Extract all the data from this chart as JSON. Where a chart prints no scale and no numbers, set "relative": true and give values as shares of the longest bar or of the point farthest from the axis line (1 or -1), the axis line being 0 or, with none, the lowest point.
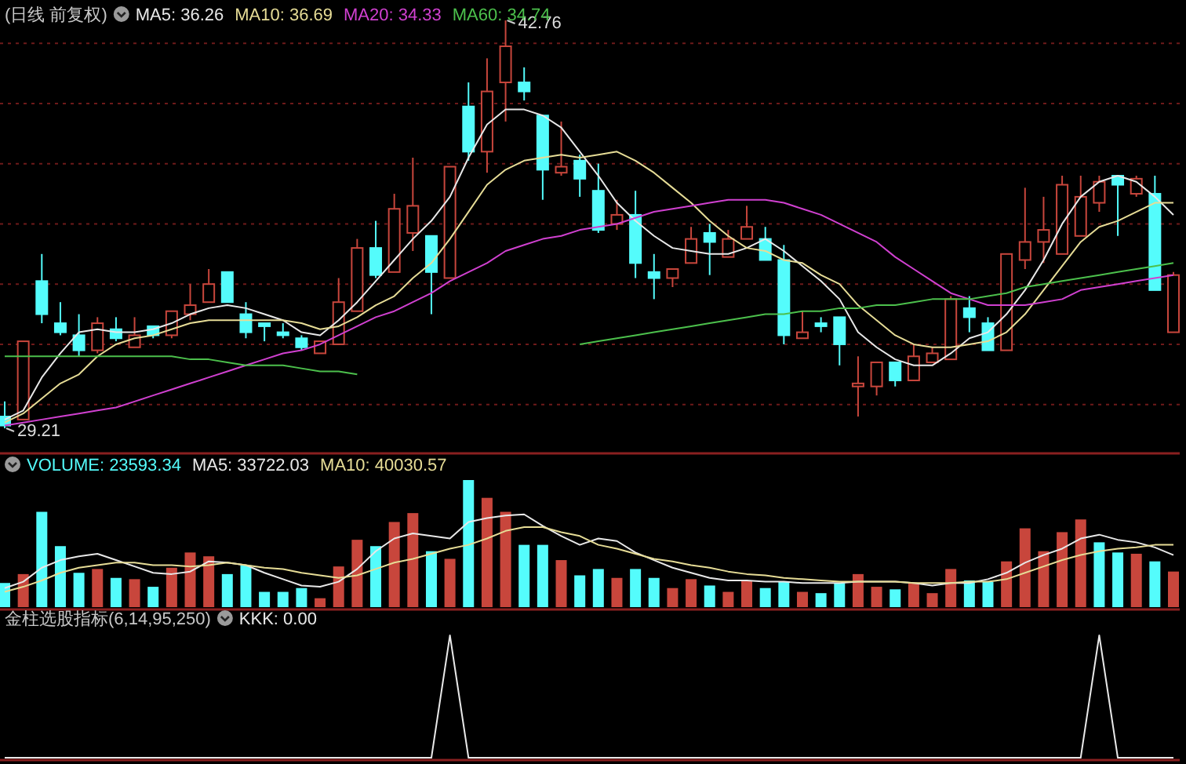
{
  "chart_data": [
    {
      "type": "candlestick",
      "title": "(日线 前复权)",
      "legend": "top left",
      "grid": "y",
      "yticks": [
        {
          "value": 30,
          "label": null
        },
        {
          "value": 32,
          "label": null
        },
        {
          "value": 34,
          "label": null
        },
        {
          "value": 36,
          "label": null
        },
        {
          "value": 38,
          "label": null
        },
        {
          "value": 40,
          "label": null
        },
        {
          "value": 42,
          "label": null
        }
      ],
      "categories": [
        null,
        null,
        null,
        null,
        null,
        null,
        null,
        null,
        null,
        null,
        null,
        null,
        null,
        null,
        null,
        null,
        null,
        null,
        null,
        null,
        null,
        null,
        null,
        null,
        null,
        null,
        null,
        null,
        null,
        null,
        null,
        null,
        null,
        null,
        null,
        null,
        null,
        null,
        null,
        null,
        null,
        null,
        null,
        null,
        null,
        null,
        null,
        null,
        null,
        null,
        null,
        null,
        null,
        null,
        null,
        null,
        null,
        null,
        null,
        null,
        null,
        null,
        null,
        null
      ],
      "ohlc": [
        [
          29.6,
          30.1,
          29.21,
          29.3
        ],
        [
          29.5,
          32.1,
          29.5,
          32.1
        ],
        [
          34.1,
          35.0,
          32.7,
          33.0
        ],
        [
          32.7,
          33.4,
          32.3,
          32.4
        ],
        [
          32.3,
          33.0,
          31.6,
          31.8
        ],
        [
          31.8,
          32.9,
          31.7,
          32.7
        ],
        [
          32.5,
          32.9,
          32.1,
          32.2
        ],
        [
          31.9,
          32.9,
          31.9,
          32.3
        ],
        [
          32.6,
          32.6,
          32.2,
          32.3
        ],
        [
          32.3,
          33.1,
          32.2,
          33.1
        ],
        [
          33.0,
          34.0,
          32.8,
          33.3
        ],
        [
          33.4,
          34.5,
          33.4,
          34.0
        ],
        [
          34.4,
          34.4,
          33.4,
          33.4
        ],
        [
          33.0,
          33.4,
          32.2,
          32.4
        ],
        [
          32.7,
          32.7,
          32.1,
          32.6
        ],
        [
          32.4,
          32.7,
          32.2,
          32.3
        ],
        [
          32.2,
          32.3,
          31.8,
          31.9
        ],
        [
          31.7,
          32.1,
          31.7,
          32.1
        ],
        [
          32.0,
          34.2,
          32.0,
          33.4
        ],
        [
          33.1,
          35.5,
          33.1,
          35.2
        ],
        [
          35.2,
          36.1,
          34.2,
          34.3
        ],
        [
          34.4,
          37.0,
          34.4,
          36.5
        ],
        [
          35.7,
          38.2,
          35.1,
          36.6
        ],
        [
          35.6,
          35.6,
          33.0,
          34.4
        ],
        [
          34.2,
          37.9,
          34.2,
          37.9
        ],
        [
          39.9,
          40.7,
          38.1,
          38.4
        ],
        [
          38.4,
          41.5,
          37.7,
          40.4
        ],
        [
          40.7,
          42.76,
          39.4,
          41.9
        ],
        [
          40.7,
          41.2,
          40.1,
          40.4
        ],
        [
          39.6,
          39.6,
          36.8,
          37.8
        ],
        [
          37.7,
          39.4,
          37.6,
          37.9
        ],
        [
          38.1,
          38.3,
          36.9,
          37.5
        ],
        [
          37.1,
          38.0,
          35.7,
          35.8
        ],
        [
          36.0,
          36.8,
          35.8,
          36.3
        ],
        [
          36.3,
          37.1,
          34.2,
          34.7
        ],
        [
          34.4,
          35.0,
          33.5,
          34.2
        ],
        [
          34.2,
          34.5,
          33.9,
          34.5
        ],
        [
          34.7,
          35.9,
          34.7,
          35.5
        ],
        [
          35.7,
          36.0,
          34.3,
          35.4
        ],
        [
          34.9,
          35.8,
          34.9,
          35.5
        ],
        [
          35.5,
          36.6,
          35.5,
          35.9
        ],
        [
          35.5,
          35.9,
          34.8,
          34.8
        ],
        [
          34.8,
          35.3,
          32.0,
          32.3
        ],
        [
          32.2,
          33.1,
          32.2,
          32.4
        ],
        [
          32.7,
          32.9,
          32.4,
          32.6
        ],
        [
          32.9,
          32.9,
          31.3,
          32.0
        ],
        [
          30.6,
          31.6,
          29.6,
          30.7
        ],
        [
          30.6,
          31.4,
          30.3,
          31.4
        ],
        [
          31.4,
          31.4,
          30.6,
          30.8
        ],
        [
          30.8,
          32.0,
          30.8,
          31.6
        ],
        [
          31.4,
          31.9,
          31.4,
          31.7
        ],
        [
          31.5,
          33.6,
          31.5,
          33.5
        ],
        [
          33.2,
          33.6,
          32.4,
          32.9
        ],
        [
          32.7,
          32.9,
          31.8,
          31.8
        ],
        [
          31.8,
          35.0,
          31.8,
          35.0
        ],
        [
          34.8,
          37.2,
          34.5,
          35.4
        ],
        [
          35.4,
          36.9,
          34.7,
          35.8
        ],
        [
          35.0,
          37.6,
          35.0,
          37.3
        ],
        [
          35.6,
          37.6,
          35.6,
          36.9
        ],
        [
          36.7,
          37.6,
          36.4,
          37.4
        ],
        [
          37.6,
          37.6,
          35.6,
          37.3
        ],
        [
          37.0,
          37.6,
          36.9,
          37.5
        ],
        [
          37.0,
          37.6,
          33.8,
          33.8
        ],
        [
          32.4,
          34.4,
          32.4,
          34.3
        ]
      ],
      "series": [
        {
          "type": "line",
          "name": "MA5: 36.26",
          "color": "#e8e8e8",
          "values": [
            29.5,
            29.8,
            30.9,
            31.7,
            32.4,
            32.5,
            32.4,
            32.4,
            32.5,
            32.7,
            33.0,
            33.2,
            33.3,
            33.2,
            33.0,
            32.8,
            32.4,
            32.3,
            32.8,
            33.4,
            34.1,
            34.8,
            35.5,
            36.1,
            36.9,
            38.2,
            39.3,
            39.8,
            39.8,
            39.6,
            39.2,
            38.4,
            37.6,
            36.7,
            36.1,
            35.6,
            35.2,
            35.1,
            35.0,
            35.0,
            35.2,
            35.5,
            35.1,
            34.6,
            34.1,
            33.5,
            32.4,
            31.9,
            31.5,
            31.3,
            31.3,
            31.7,
            32.2,
            32.4,
            33.0,
            33.8,
            34.8,
            36.0,
            36.9,
            37.4,
            37.6,
            37.4,
            36.9,
            36.3
          ]
        },
        {
          "type": "line",
          "name": "MA10: 36.69",
          "color": "#e6dc96",
          "values": [
            29.4,
            29.7,
            30.2,
            30.7,
            31.0,
            31.6,
            32.0,
            32.2,
            32.3,
            32.5,
            32.7,
            32.8,
            32.8,
            32.8,
            32.8,
            32.8,
            32.7,
            32.5,
            32.6,
            32.9,
            33.3,
            33.6,
            34.2,
            34.7,
            35.5,
            36.4,
            37.3,
            37.8,
            38.1,
            38.2,
            38.3,
            38.2,
            38.3,
            38.4,
            38.1,
            37.7,
            37.2,
            36.7,
            36.1,
            35.6,
            35.2,
            35.1,
            34.8,
            34.7,
            34.3,
            34.0,
            33.3,
            32.8,
            32.3,
            32.0,
            31.9,
            31.9,
            32.0,
            32.1,
            32.4,
            33.0,
            33.8,
            34.6,
            35.4,
            35.9,
            36.1,
            36.4,
            36.7,
            36.7
          ]
        },
        {
          "type": "line",
          "name": "MA20: 34.33",
          "color": "#d040d0",
          "values": [
            29.3,
            29.4,
            29.5,
            29.6,
            29.7,
            29.8,
            29.9,
            30.1,
            30.3,
            30.5,
            30.7,
            30.9,
            31.1,
            31.3,
            31.5,
            31.7,
            31.8,
            32.0,
            32.3,
            32.6,
            32.9,
            33.1,
            33.4,
            33.7,
            34.1,
            34.4,
            34.7,
            35.1,
            35.3,
            35.5,
            35.6,
            35.8,
            35.9,
            36.0,
            36.2,
            36.4,
            36.5,
            36.6,
            36.7,
            36.8,
            36.8,
            36.8,
            36.7,
            36.5,
            36.3,
            36.0,
            35.7,
            35.4,
            34.9,
            34.5,
            34.1,
            33.7,
            33.5,
            33.3,
            33.3,
            33.3,
            33.4,
            33.5,
            33.8,
            33.9,
            34.0,
            34.1,
            34.2,
            34.3
          ]
        },
        {
          "type": "line",
          "name": "MA60: 34.74",
          "color": "#4cc04c",
          "values": [
            31.6,
            31.6,
            31.6,
            31.6,
            31.6,
            31.6,
            31.6,
            31.6,
            31.6,
            31.6,
            31.5,
            31.5,
            31.4,
            31.3,
            31.3,
            31.3,
            31.2,
            31.1,
            31.1,
            31.0,
            null,
            null,
            null,
            null,
            null,
            null,
            null,
            null,
            null,
            null,
            null,
            32.0,
            32.1,
            32.2,
            32.3,
            32.4,
            32.5,
            32.6,
            32.7,
            32.8,
            32.9,
            33.0,
            33.0,
            33.1,
            33.1,
            33.2,
            33.2,
            33.3,
            33.3,
            33.4,
            33.5,
            33.5,
            33.5,
            33.6,
            33.7,
            33.9,
            34.0,
            34.1,
            34.2,
            34.3,
            34.4,
            34.5,
            34.6,
            34.7
          ]
        }
      ],
      "annotations": [
        "42.76",
        "29.21"
      ]
    },
    {
      "type": "bar",
      "relative": true,
      "legend": "top left",
      "categories": [
        null,
        null,
        null,
        null,
        null,
        null,
        null,
        null,
        null,
        null,
        null,
        null,
        null,
        null,
        null,
        null,
        null,
        null,
        null,
        null,
        null,
        null,
        null,
        null,
        null,
        null,
        null,
        null,
        null,
        null,
        null,
        null,
        null,
        null,
        null,
        null,
        null,
        null,
        null,
        null,
        null,
        null,
        null,
        null,
        null,
        null,
        null,
        null,
        null,
        null,
        null,
        null,
        null,
        null,
        null,
        null,
        null,
        null,
        null,
        null,
        null,
        null,
        null,
        null
      ],
      "series": [
        {
          "type": "bar",
          "name": "VOLUME: 23593.34",
          "values": [
            0.19,
            0.26,
            0.75,
            0.48,
            0.27,
            0.3,
            0.23,
            0.22,
            0.16,
            0.31,
            0.43,
            0.4,
            0.26,
            0.33,
            0.12,
            0.12,
            0.15,
            0.07,
            0.32,
            0.53,
            0.48,
            0.67,
            0.74,
            0.44,
            0.38,
            1,
            0.86,
            0.75,
            0.49,
            0.49,
            0.37,
            0.25,
            0.3,
            0.23,
            0.3,
            0.23,
            0.15,
            0.22,
            0.17,
            0.12,
            0.21,
            0.15,
            0.2,
            0.12,
            0.11,
            0.19,
            0.26,
            0.16,
            0.14,
            0.19,
            0.11,
            0.3,
            0.21,
            0.2,
            0.36,
            0.62,
            0.44,
            0.59,
            0.69,
            0.51,
            0.43,
            0.42,
            0.36,
            0.28
          ],
          "colors": [
            "#54fcfc",
            "#c8463c",
            "#54fcfc",
            "#54fcfc",
            "#54fcfc",
            "#c8463c",
            "#54fcfc",
            "#c8463c",
            "#54fcfc",
            "#c8463c",
            "#c8463c",
            "#c8463c",
            "#54fcfc",
            "#54fcfc",
            "#54fcfc",
            "#54fcfc",
            "#54fcfc",
            "#c8463c",
            "#c8463c",
            "#c8463c",
            "#54fcfc",
            "#c8463c",
            "#c8463c",
            "#54fcfc",
            "#c8463c",
            "#54fcfc",
            "#c8463c",
            "#c8463c",
            "#54fcfc",
            "#54fcfc",
            "#c8463c",
            "#54fcfc",
            "#54fcfc",
            "#c8463c",
            "#54fcfc",
            "#54fcfc",
            "#c8463c",
            "#c8463c",
            "#54fcfc",
            "#c8463c",
            "#c8463c",
            "#54fcfc",
            "#54fcfc",
            "#c8463c",
            "#54fcfc",
            "#54fcfc",
            "#c8463c",
            "#c8463c",
            "#54fcfc",
            "#c8463c",
            "#c8463c",
            "#c8463c",
            "#54fcfc",
            "#54fcfc",
            "#c8463c",
            "#c8463c",
            "#c8463c",
            "#c8463c",
            "#c8463c",
            "#54fcfc",
            "#54fcfc",
            "#c8463c",
            "#54fcfc",
            "#c8463c"
          ]
        },
        {
          "type": "line",
          "name": "MA5: 33722.03",
          "color": "#e8e8e8",
          "values": [
            0.15,
            0.2,
            0.31,
            0.37,
            0.4,
            0.42,
            0.37,
            0.32,
            0.27,
            0.26,
            0.28,
            0.36,
            0.35,
            0.33,
            0.27,
            0.22,
            0.17,
            0.16,
            0.2,
            0.3,
            0.44,
            0.54,
            0.58,
            0.56,
            0.54,
            0.67,
            0.7,
            0.72,
            0.73,
            0.64,
            0.56,
            0.49,
            0.54,
            0.52,
            0.43,
            0.37,
            0.31,
            0.27,
            0.23,
            0.21,
            0.21,
            0.2,
            0.2,
            0.19,
            0.19,
            0.19,
            0.2,
            0.2,
            0.2,
            0.19,
            0.17,
            0.19,
            0.19,
            0.22,
            0.27,
            0.35,
            0.41,
            0.46,
            0.54,
            0.57,
            0.53,
            0.51,
            0.47,
            0.41
          ]
        },
        {
          "type": "line",
          "name": "MA10: 40030.57",
          "color": "#e6dc96",
          "values": [
            0.12,
            0.16,
            0.21,
            0.27,
            0.31,
            0.33,
            0.35,
            0.35,
            0.33,
            0.33,
            0.32,
            0.33,
            0.35,
            0.33,
            0.31,
            0.3,
            0.27,
            0.25,
            0.23,
            0.25,
            0.3,
            0.35,
            0.38,
            0.42,
            0.46,
            0.49,
            0.54,
            0.6,
            0.63,
            0.63,
            0.59,
            0.56,
            0.49,
            0.46,
            0.42,
            0.38,
            0.36,
            0.33,
            0.31,
            0.28,
            0.26,
            0.25,
            0.23,
            0.22,
            0.21,
            0.2,
            0.2,
            0.2,
            0.2,
            0.19,
            0.19,
            0.19,
            0.2,
            0.2,
            0.22,
            0.27,
            0.32,
            0.37,
            0.41,
            0.44,
            0.46,
            0.47,
            0.49,
            0.49
          ]
        }
      ]
    },
    {
      "type": "line",
      "relative": true,
      "title": "金柱选股指标(6,14,95,250)",
      "legend": "top left",
      "categories": [
        null,
        null,
        null,
        null,
        null,
        null,
        null,
        null,
        null,
        null,
        null,
        null,
        null,
        null,
        null,
        null,
        null,
        null,
        null,
        null,
        null,
        null,
        null,
        null,
        null,
        null,
        null,
        null,
        null,
        null,
        null,
        null,
        null,
        null,
        null,
        null,
        null,
        null,
        null,
        null,
        null,
        null,
        null,
        null,
        null,
        null,
        null,
        null,
        null,
        null,
        null,
        null,
        null,
        null,
        null,
        null,
        null,
        null,
        null,
        null,
        null,
        null,
        null,
        null
      ],
      "series": [
        {
          "name": "KKK: 0.00",
          "color": "#e8e8e8",
          "values": [
            0,
            0,
            0,
            0,
            0,
            0,
            0,
            0,
            0,
            0,
            0,
            0,
            0,
            0,
            0,
            0,
            0,
            0,
            0,
            0,
            0,
            0,
            0,
            0,
            1,
            0,
            0,
            0,
            0,
            0,
            0,
            0,
            0,
            0,
            0,
            0,
            0,
            0,
            0,
            0,
            0,
            0,
            0,
            0,
            0,
            0,
            0,
            0,
            0,
            0,
            0,
            0,
            0,
            0,
            0,
            0,
            0,
            0,
            0,
            1,
            0,
            0,
            0,
            0
          ]
        }
      ]
    }
  ]
}
